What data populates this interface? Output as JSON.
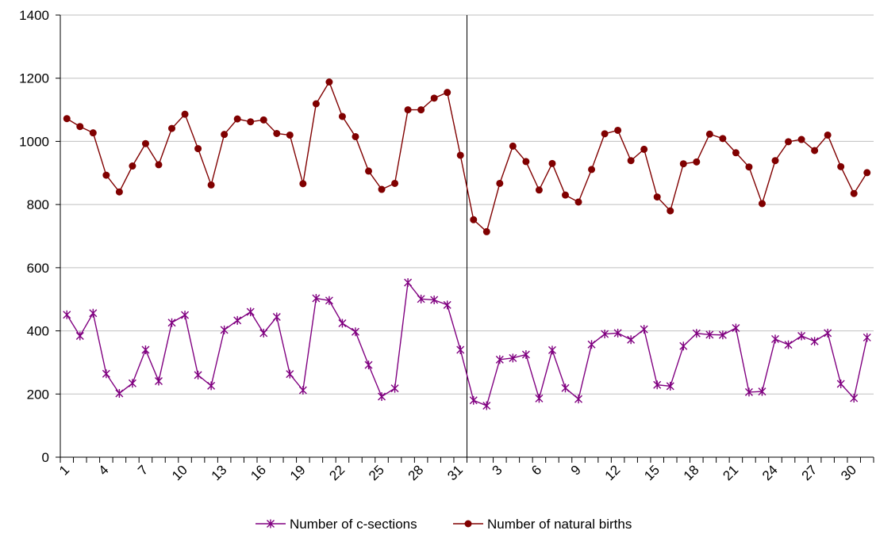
{
  "chart_data": {
    "type": "line",
    "title": "",
    "xlabel": "",
    "ylabel": "",
    "ylim": [
      0,
      1400
    ],
    "yticks": [
      0,
      200,
      400,
      600,
      800,
      1000,
      1200,
      1400
    ],
    "grid": "horizontal",
    "legend": "bottom-center",
    "divider_after_index": 30,
    "x_tick_labels": [
      "1",
      "4",
      "7",
      "10",
      "13",
      "16",
      "19",
      "22",
      "25",
      "28",
      "31",
      "3",
      "6",
      "9",
      "12",
      "15",
      "18",
      "21",
      "24",
      "27",
      "30"
    ],
    "x": [
      1,
      2,
      3,
      4,
      5,
      6,
      7,
      8,
      9,
      10,
      11,
      12,
      13,
      14,
      15,
      16,
      17,
      18,
      19,
      20,
      21,
      22,
      23,
      24,
      25,
      26,
      27,
      28,
      29,
      30,
      31,
      1,
      2,
      3,
      4,
      5,
      6,
      7,
      8,
      9,
      10,
      11,
      12,
      13,
      14,
      15,
      16,
      17,
      18,
      19,
      20,
      21,
      22,
      23,
      24,
      25,
      26,
      27,
      28,
      29,
      30,
      31
    ],
    "series": [
      {
        "name": "Number of c-sections",
        "color": "#800080",
        "marker": "star",
        "values": [
          451,
          384,
          456,
          264,
          202,
          234,
          340,
          241,
          426,
          450,
          260,
          226,
          403,
          433,
          460,
          393,
          444,
          263,
          212,
          503,
          496,
          424,
          397,
          292,
          192,
          218,
          553,
          501,
          498,
          482,
          340,
          180,
          163,
          309,
          314,
          325,
          186,
          339,
          219,
          184,
          357,
          390,
          393,
          372,
          405,
          229,
          225,
          352,
          392,
          388,
          387,
          409,
          206,
          208,
          374,
          356,
          384,
          367,
          393,
          232,
          187,
          379
        ]
      },
      {
        "name": "Number of natural births",
        "color": "#800000",
        "marker": "circle",
        "values": [
          1072,
          1047,
          1027,
          893,
          840,
          922,
          993,
          926,
          1041,
          1086,
          977,
          862,
          1022,
          1071,
          1062,
          1068,
          1025,
          1020,
          866,
          1119,
          1188,
          1079,
          1015,
          906,
          848,
          867,
          1100,
          1100,
          1137,
          1155,
          956,
          752,
          714,
          867,
          985,
          936,
          846,
          930,
          830,
          808,
          911,
          1024,
          1035,
          939,
          975,
          824,
          780,
          929,
          935,
          1023,
          1009,
          964,
          919,
          803,
          939,
          999,
          1006,
          971,
          1020,
          920,
          835,
          901
        ]
      }
    ]
  }
}
